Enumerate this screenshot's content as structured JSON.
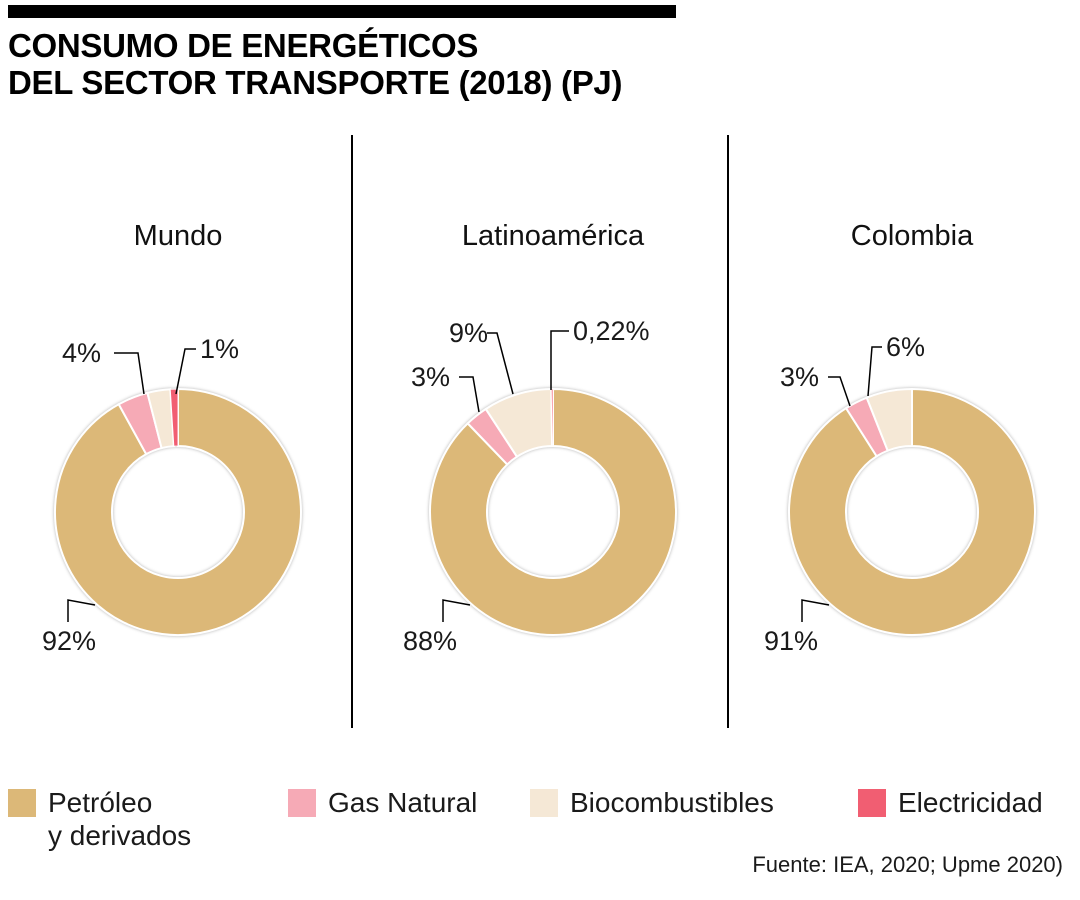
{
  "header": {
    "title_line1": "CONSUMO DE ENERGÉTICOS",
    "title_line2": "DEL SECTOR TRANSPORTE (2018) (PJ)"
  },
  "palette": {
    "petroleo": "#dcb878",
    "gas": "#f6aab6",
    "bio": "#f5e8d6",
    "electricidad": "#f15e72"
  },
  "chart_data": [
    {
      "type": "pie",
      "subtype": "donut",
      "title": "Mundo",
      "unit": "%",
      "legend_position": "bottom",
      "segments": [
        {
          "name": "Petróleo y derivados",
          "key": "petroleo",
          "value": 92,
          "label": "92%"
        },
        {
          "name": "Gas Natural",
          "key": "gas",
          "value": 4,
          "label": "4%"
        },
        {
          "name": "Biocombustibles",
          "key": "bio",
          "value": 3,
          "label": null
        },
        {
          "name": "Electricidad",
          "key": "electricidad",
          "value": 1,
          "label": "1%"
        }
      ]
    },
    {
      "type": "pie",
      "subtype": "donut",
      "title": "Latinoamérica",
      "unit": "%",
      "legend_position": "bottom",
      "segments": [
        {
          "name": "Petróleo y derivados",
          "key": "petroleo",
          "value": 88,
          "label": "88%"
        },
        {
          "name": "Gas Natural",
          "key": "gas",
          "value": 3,
          "label": "3%"
        },
        {
          "name": "Biocombustibles",
          "key": "bio",
          "value": 9,
          "label": "9%"
        },
        {
          "name": "Electricidad",
          "key": "electricidad",
          "value": 0.22,
          "label": "0,22%"
        }
      ]
    },
    {
      "type": "pie",
      "subtype": "donut",
      "title": "Colombia",
      "unit": "%",
      "legend_position": "bottom",
      "segments": [
        {
          "name": "Petróleo y derivados",
          "key": "petroleo",
          "value": 91,
          "label": "91%"
        },
        {
          "name": "Gas Natural",
          "key": "gas",
          "value": 3,
          "label": "3%"
        },
        {
          "name": "Biocombustibles",
          "key": "bio",
          "value": 6,
          "label": "6%"
        }
      ]
    }
  ],
  "legend": {
    "items": [
      {
        "key": "petroleo",
        "label": "Petróleo",
        "label2": "y derivados"
      },
      {
        "key": "gas",
        "label": "Gas Natural"
      },
      {
        "key": "bio",
        "label": "Biocombustibles"
      },
      {
        "key": "electricidad",
        "label": "Electricidad"
      }
    ]
  },
  "source": "Fuente: IEA, 2020; Upme 2020)"
}
